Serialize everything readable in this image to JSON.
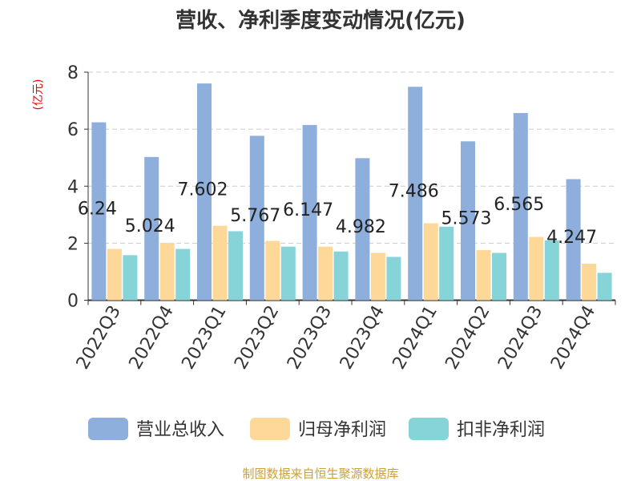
{
  "chart_data": {
    "type": "bar",
    "title": "营收、净利季度变动情况(亿元)",
    "ylabel": "(亿元)",
    "ylim": [
      0,
      8
    ],
    "yticks": [
      0,
      2,
      4,
      6,
      8
    ],
    "grid": true,
    "legend_position": "bottom",
    "categories": [
      "2022Q3",
      "2022Q4",
      "2023Q1",
      "2023Q2",
      "2023Q3",
      "2023Q4",
      "2024Q1",
      "2024Q2",
      "2024Q3",
      "2024Q4"
    ],
    "series": [
      {
        "name": "营业总收入",
        "color": "#8eaedc",
        "values": [
          6.24,
          5.024,
          7.602,
          5.767,
          6.147,
          4.982,
          7.486,
          5.573,
          6.565,
          4.247
        ],
        "labels": [
          "6.24",
          "5.024",
          "7.602",
          "5.767",
          "6.147",
          "4.982",
          "7.486",
          "5.573",
          "6.565",
          "4.247"
        ]
      },
      {
        "name": "归母净利润",
        "color": "#fdd898",
        "values": [
          1.8,
          2.01,
          2.61,
          2.08,
          1.88,
          1.66,
          2.7,
          1.76,
          2.22,
          1.28
        ]
      },
      {
        "name": "扣非净利润",
        "color": "#86d4d8",
        "values": [
          1.58,
          1.8,
          2.42,
          1.88,
          1.71,
          1.52,
          2.58,
          1.66,
          2.1,
          0.96
        ]
      }
    ]
  },
  "footer": "制图数据来自恒生聚源数据库"
}
